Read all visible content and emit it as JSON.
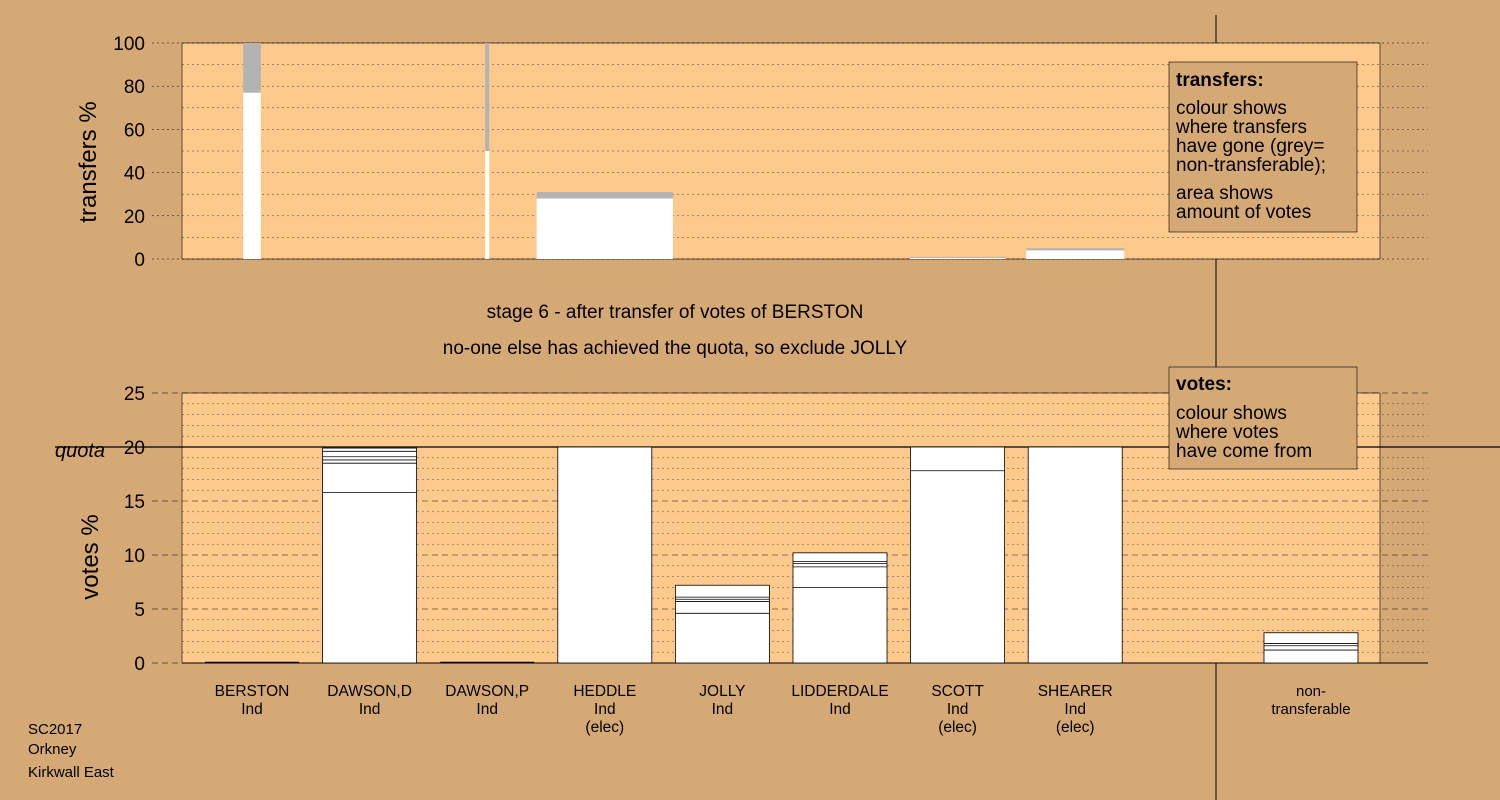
{
  "colors": {
    "background": "#d4a976",
    "plot_fill": "#fec98c",
    "bar_fill": "#ffffff",
    "nontransferable_grey": "#b3b3b3",
    "line": "#000000"
  },
  "footer": [
    "SC2017",
    "Orkney",
    "Kirkwall East"
  ],
  "stage_text": {
    "line1": "stage 6 - after transfer of votes of BERSTON",
    "line2": "no-one else has achieved the quota, so exclude JOLLY"
  },
  "legend_transfers": {
    "title": "transfers:",
    "lines": [
      "colour shows",
      "where transfers",
      "have gone (grey=",
      "non-transferable);",
      "area shows",
      "amount of votes"
    ]
  },
  "legend_votes": {
    "title": "votes:",
    "lines": [
      "colour shows",
      "where votes",
      "have come from"
    ]
  },
  "chart_data": [
    {
      "type": "bar",
      "ylabel": "transfers %",
      "ylim": [
        0,
        100
      ],
      "yticks": [
        0,
        20,
        40,
        60,
        80,
        100
      ],
      "grid": "dotted",
      "bars": [
        {
          "candidate": "BERSTON",
          "width_share": 0.13,
          "transferred": 77,
          "nontransferable": 23
        },
        {
          "candidate": "DAWSON,P",
          "width_share": 0.03,
          "transferred": 50,
          "nontransferable": 50
        },
        {
          "candidate": "HEDDLE",
          "width_share": 1.0,
          "transferred": 28,
          "nontransferable": 3
        },
        {
          "candidate": "SCOTT",
          "width_share": 0.7,
          "transferred": 0.5,
          "nontransferable": 0.5
        },
        {
          "candidate": "SHEARER",
          "width_share": 0.72,
          "transferred": 4,
          "nontransferable": 1
        }
      ]
    },
    {
      "type": "bar",
      "ylabel": "votes %",
      "ylim": [
        0,
        25
      ],
      "yticks": [
        0,
        5,
        10,
        15,
        20,
        25
      ],
      "quota": 20,
      "quota_label": "quota",
      "grid": "dotted",
      "categories": [
        {
          "name": "BERSTON",
          "party": "Ind",
          "status": "",
          "total": 0,
          "segments": []
        },
        {
          "name": "DAWSON,D",
          "party": "Ind",
          "status": "",
          "total": 19.9,
          "segments": [
            15.8,
            18.5,
            18.8,
            19.1,
            19.6
          ]
        },
        {
          "name": "DAWSON,P",
          "party": "Ind",
          "status": "",
          "total": 0,
          "segments": []
        },
        {
          "name": "HEDDLE",
          "party": "Ind",
          "status": "(elec)",
          "total": 20,
          "segments": []
        },
        {
          "name": "JOLLY",
          "party": "Ind",
          "status": "",
          "total": 7.2,
          "segments": [
            4.6,
            5.7,
            5.9,
            6.1
          ]
        },
        {
          "name": "LIDDERDALE",
          "party": "Ind",
          "status": "",
          "total": 10.2,
          "segments": [
            7.0,
            8.9,
            9.2,
            9.4
          ]
        },
        {
          "name": "SCOTT",
          "party": "Ind",
          "status": "(elec)",
          "total": 20,
          "segments": [
            17.8
          ]
        },
        {
          "name": "SHEARER",
          "party": "Ind",
          "status": "(elec)",
          "total": 20,
          "segments": []
        },
        {
          "name": "non-\ntransferable",
          "party": "",
          "status": "",
          "total": 2.8,
          "segments": [
            1.2,
            1.6,
            1.8
          ]
        }
      ]
    }
  ]
}
